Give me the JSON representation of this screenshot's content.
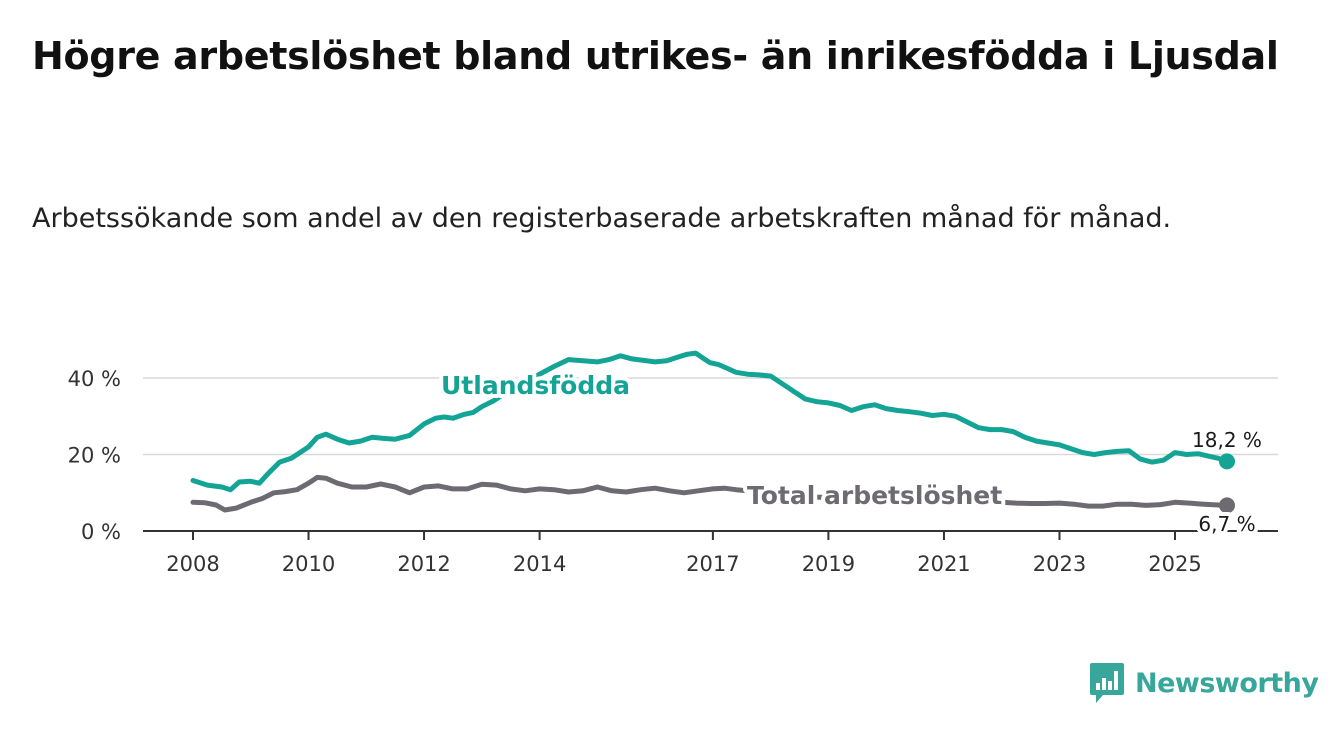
{
  "title": "Högre arbetslöshet bland utrikes- än inrikesfödda i Ljusdal",
  "subtitle": "Arbetssökande som andel av den registerbaserade arbetskraften månad för månad.",
  "brand": {
    "name": "Newsworthy",
    "icon": "newsworthy-logo-icon",
    "color": "#36a79a"
  },
  "colors": {
    "utlandsfodda": "#14a496",
    "total": "#6d6a72",
    "grid": "#d9d9d9",
    "axis": "#333333",
    "text": "#333333"
  },
  "chart_data": {
    "type": "line",
    "title": "Högre arbetslöshet bland utrikes- än inrikesfödda i Ljusdal",
    "subtitle": "Arbetssökande som andel av den registerbaserade arbetskraften månad för månad.",
    "xlabel": "",
    "ylabel": "",
    "xlim": [
      2007.8,
      2026.8
    ],
    "ylim": [
      0,
      48
    ],
    "yticks": [
      0,
      20,
      40
    ],
    "ytick_labels": [
      "0 %",
      "20 %",
      "40 %"
    ],
    "xticks": [
      2008,
      2010,
      2012,
      2014,
      2017,
      2019,
      2021,
      2023,
      2025
    ],
    "xtick_labels": [
      "2008",
      "2010",
      "2012",
      "2014",
      "2017",
      "2019",
      "2021",
      "2023",
      "2025"
    ],
    "grid": true,
    "legend": "inline labels",
    "series": [
      {
        "name": "Utlandsfödda",
        "label": "Utlandsfödda",
        "end_label": "18,2 %",
        "x": [
          2008.0,
          2008.25,
          2008.5,
          2008.65,
          2008.8,
          2009.0,
          2009.15,
          2009.3,
          2009.5,
          2009.7,
          2009.85,
          2010.0,
          2010.15,
          2010.3,
          2010.5,
          2010.7,
          2010.9,
          2011.1,
          2011.3,
          2011.5,
          2011.75,
          2012.0,
          2012.2,
          2012.35,
          2012.5,
          2012.7,
          2012.85,
          2013.0,
          2013.2,
          2013.4,
          2013.6,
          2013.8,
          2014.0,
          2014.25,
          2014.5,
          2014.75,
          2015.0,
          2015.2,
          2015.4,
          2015.6,
          2015.8,
          2016.0,
          2016.2,
          2016.4,
          2016.55,
          2016.7,
          2016.85,
          2016.95,
          2017.1,
          2017.25,
          2017.4,
          2017.6,
          2017.8,
          2018.0,
          2018.2,
          2018.4,
          2018.6,
          2018.8,
          2019.0,
          2019.2,
          2019.4,
          2019.6,
          2019.8,
          2020.0,
          2020.2,
          2020.4,
          2020.6,
          2020.8,
          2021.0,
          2021.2,
          2021.4,
          2021.6,
          2021.8,
          2022.0,
          2022.2,
          2022.4,
          2022.6,
          2022.8,
          2023.0,
          2023.2,
          2023.4,
          2023.6,
          2023.8,
          2024.0,
          2024.2,
          2024.4,
          2024.6,
          2024.8,
          2025.0,
          2025.2,
          2025.4,
          2025.6,
          2025.75,
          2025.9
        ],
        "values": [
          13.2,
          12.0,
          11.5,
          10.8,
          12.8,
          13.0,
          12.5,
          15.0,
          18.0,
          19.0,
          20.5,
          22.0,
          24.5,
          25.3,
          24.0,
          23.0,
          23.5,
          24.5,
          24.2,
          24.0,
          25.0,
          28.0,
          29.5,
          29.8,
          29.5,
          30.5,
          31.0,
          32.5,
          34.0,
          36.0,
          38.0,
          39.0,
          41.0,
          43.0,
          44.8,
          44.5,
          44.2,
          44.8,
          45.8,
          45.0,
          44.6,
          44.2,
          44.5,
          45.5,
          46.2,
          46.5,
          45.0,
          44.0,
          43.5,
          42.5,
          41.5,
          41.0,
          40.8,
          40.5,
          38.5,
          36.5,
          34.5,
          33.8,
          33.5,
          32.8,
          31.5,
          32.5,
          33.0,
          32.0,
          31.5,
          31.2,
          30.8,
          30.2,
          30.5,
          30.0,
          28.5,
          27.0,
          26.5,
          26.5,
          26.0,
          24.5,
          23.5,
          23.0,
          22.5,
          21.5,
          20.5,
          20.0,
          20.5,
          20.8,
          21.0,
          18.8,
          18.0,
          18.5,
          20.5,
          20.0,
          20.2,
          19.5,
          19.0,
          18.2
        ]
      },
      {
        "name": "Total arbetslöshet",
        "label": "Total arbetslöshet",
        "end_label": "6,7 %",
        "x": [
          2008.0,
          2008.2,
          2008.4,
          2008.55,
          2008.75,
          2009.0,
          2009.2,
          2009.4,
          2009.6,
          2009.8,
          2010.0,
          2010.15,
          2010.3,
          2010.5,
          2010.75,
          2011.0,
          2011.25,
          2011.5,
          2011.75,
          2012.0,
          2012.25,
          2012.5,
          2012.75,
          2013.0,
          2013.25,
          2013.5,
          2013.75,
          2014.0,
          2014.25,
          2014.5,
          2014.75,
          2015.0,
          2015.25,
          2015.5,
          2015.75,
          2016.0,
          2016.25,
          2016.5,
          2016.75,
          2017.0,
          2017.2,
          2017.4,
          2017.6,
          2017.8,
          2018.0,
          2018.25,
          2018.5,
          2018.75,
          2019.0,
          2019.25,
          2019.5,
          2019.75,
          2020.0,
          2020.25,
          2020.5,
          2020.75,
          2021.0,
          2021.25,
          2021.5,
          2021.75,
          2022.0,
          2022.25,
          2022.5,
          2022.75,
          2023.0,
          2023.25,
          2023.5,
          2023.75,
          2024.0,
          2024.25,
          2024.5,
          2024.75,
          2025.0,
          2025.25,
          2025.5,
          2025.75,
          2025.9
        ],
        "values": [
          7.5,
          7.4,
          6.8,
          5.5,
          6.0,
          7.5,
          8.5,
          10.0,
          10.3,
          10.8,
          12.5,
          14.0,
          13.8,
          12.5,
          11.5,
          11.5,
          12.3,
          11.5,
          10.0,
          11.5,
          11.8,
          11.0,
          11.0,
          12.2,
          12.0,
          11.0,
          10.5,
          11.0,
          10.8,
          10.2,
          10.5,
          11.5,
          10.5,
          10.2,
          10.8,
          11.2,
          10.5,
          10.0,
          10.5,
          11.0,
          11.2,
          10.8,
          10.5,
          10.0,
          9.5,
          9.2,
          9.0,
          8.8,
          8.8,
          8.8,
          8.6,
          8.5,
          8.5,
          8.5,
          8.3,
          8.2,
          8.0,
          8.0,
          7.8,
          7.6,
          7.5,
          7.3,
          7.2,
          7.2,
          7.3,
          7.0,
          6.5,
          6.5,
          7.0,
          7.0,
          6.7,
          6.9,
          7.5,
          7.3,
          7.0,
          6.8,
          6.7
        ]
      }
    ]
  }
}
